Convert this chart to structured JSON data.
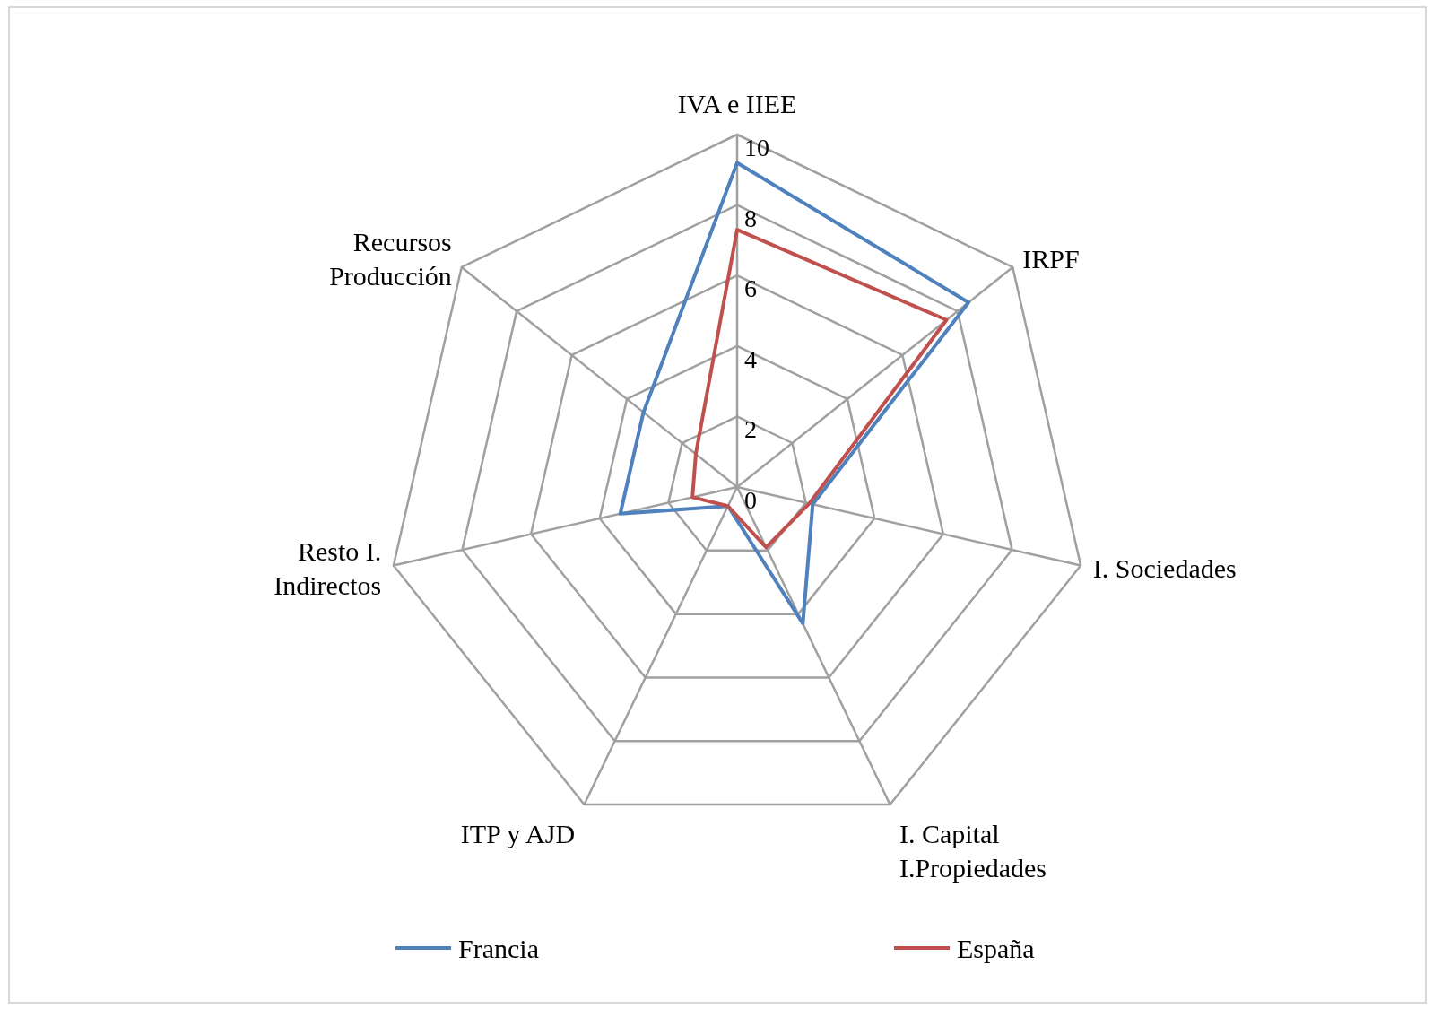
{
  "chart_data": {
    "type": "radar",
    "categories": [
      "IVA e IIEE",
      "IRPF",
      "I. Sociedades",
      "I. Capital I.Propiedades",
      "ITP y AJD",
      "Resto I. Indirectos",
      "Recursos Producción"
    ],
    "series": [
      {
        "name": "Francia",
        "color": "#4f81bd",
        "values": [
          9.2,
          8.4,
          2.2,
          4.3,
          0.6,
          3.4,
          3.4
        ]
      },
      {
        "name": "España",
        "color": "#c0504d",
        "values": [
          7.3,
          7.6,
          2.1,
          1.9,
          0.6,
          1.3,
          1.5
        ]
      }
    ],
    "ylim": [
      0,
      10
    ],
    "yticks": [
      0,
      2,
      4,
      6,
      8,
      10
    ],
    "legend": "bottom",
    "grid": true,
    "marker": "none",
    "line_style": "solid"
  }
}
